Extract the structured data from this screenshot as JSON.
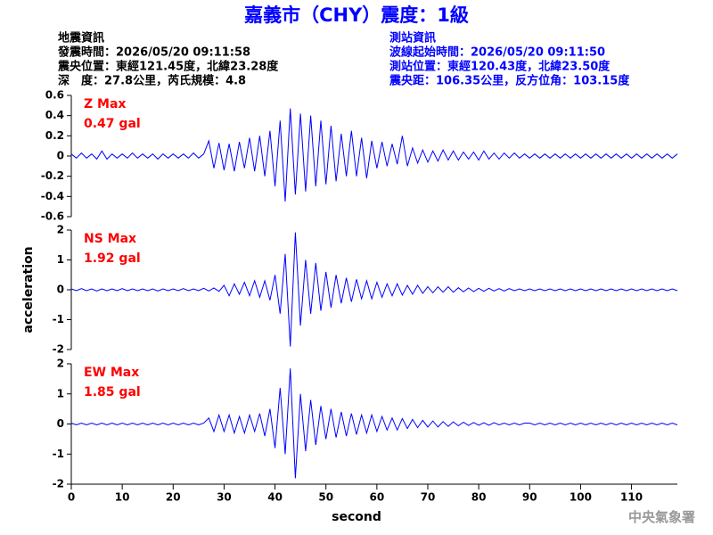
{
  "title": "嘉義市（CHY）震度：1級",
  "info_left": [
    "地震資訊",
    "發震時間：2026/05/20 09:11:58",
    "震央位置：東經121.45度，北緯23.28度",
    "深　度：27.8公里，芮氏規模：4.8"
  ],
  "info_right": [
    "測站資訊",
    "波線起始時間：2026/05/20 09:11:50",
    "測站位置：東經120.43度，北緯23.50度",
    "震央距：106.35公里，反方位角：103.15度"
  ],
  "y_label": "acceleration",
  "footer": "中央氣象署",
  "chart_data": [
    {
      "type": "line",
      "annotation": [
        "Z Max",
        "0.47 gal"
      ],
      "color": "#0000ff",
      "xlim": [
        0,
        119
      ],
      "ylim": [
        -0.6,
        0.6
      ],
      "yticks": [
        0.6,
        0.4,
        0.2,
        0,
        -0.2,
        -0.4,
        -0.6
      ],
      "x": [
        0,
        1,
        2,
        3,
        4,
        5,
        6,
        7,
        8,
        9,
        10,
        11,
        12,
        13,
        14,
        15,
        16,
        17,
        18,
        19,
        20,
        21,
        22,
        23,
        24,
        25,
        26,
        27,
        28,
        29,
        30,
        31,
        32,
        33,
        34,
        35,
        36,
        37,
        38,
        39,
        40,
        41,
        42,
        43,
        44,
        45,
        46,
        47,
        48,
        49,
        50,
        51,
        52,
        53,
        54,
        55,
        56,
        57,
        58,
        59,
        60,
        61,
        62,
        63,
        64,
        65,
        66,
        67,
        68,
        69,
        70,
        71,
        72,
        73,
        74,
        75,
        76,
        77,
        78,
        79,
        80,
        81,
        82,
        83,
        84,
        85,
        86,
        87,
        88,
        89,
        90,
        91,
        92,
        93,
        94,
        95,
        96,
        97,
        98,
        99,
        100,
        101,
        102,
        103,
        104,
        105,
        106,
        107,
        108,
        109,
        110,
        111,
        112,
        113,
        114,
        115,
        116,
        117,
        118,
        119
      ],
      "values": [
        0.02,
        -0.02,
        0.03,
        -0.02,
        0.02,
        -0.03,
        0.05,
        -0.03,
        0.02,
        -0.02,
        0.02,
        -0.02,
        0.03,
        -0.02,
        0.02,
        -0.02,
        0.02,
        -0.03,
        0.02,
        -0.02,
        0.02,
        -0.02,
        0.02,
        -0.02,
        0.03,
        -0.02,
        0.02,
        0.15,
        -0.12,
        0.13,
        -0.14,
        0.12,
        -0.15,
        0.14,
        -0.12,
        0.18,
        -0.15,
        0.2,
        -0.2,
        0.25,
        -0.3,
        0.35,
        -0.45,
        0.47,
        -0.38,
        0.42,
        -0.35,
        0.4,
        -0.3,
        0.35,
        -0.28,
        0.3,
        -0.25,
        0.22,
        -0.2,
        0.25,
        -0.2,
        0.18,
        -0.22,
        0.15,
        -0.12,
        0.14,
        -0.1,
        0.12,
        -0.08,
        0.2,
        -0.1,
        0.08,
        -0.07,
        0.06,
        -0.06,
        0.05,
        -0.05,
        0.06,
        -0.04,
        0.05,
        -0.04,
        0.04,
        -0.03,
        0.04,
        -0.04,
        0.05,
        -0.03,
        0.03,
        -0.03,
        0.03,
        -0.02,
        0.03,
        -0.02,
        0.02,
        -0.02,
        0.02,
        -0.02,
        0.02,
        -0.02,
        0.02,
        -0.02,
        0.02,
        -0.02,
        0.02,
        -0.02,
        0.02,
        -0.02,
        0.02,
        -0.02,
        0.02,
        -0.02,
        0.02,
        -0.02,
        0.02,
        -0.02,
        0.02,
        -0.02,
        0.02,
        -0.02,
        0.02,
        -0.02,
        0.02,
        -0.02,
        0.02
      ]
    },
    {
      "type": "line",
      "annotation": [
        "NS Max",
        "1.92 gal"
      ],
      "color": "#0000ff",
      "xlim": [
        0,
        119
      ],
      "ylim": [
        -2,
        2
      ],
      "yticks": [
        2,
        1,
        0,
        -1,
        -2
      ],
      "x": [
        0,
        1,
        2,
        3,
        4,
        5,
        6,
        7,
        8,
        9,
        10,
        11,
        12,
        13,
        14,
        15,
        16,
        17,
        18,
        19,
        20,
        21,
        22,
        23,
        24,
        25,
        26,
        27,
        28,
        29,
        30,
        31,
        32,
        33,
        34,
        35,
        36,
        37,
        38,
        39,
        40,
        41,
        42,
        43,
        44,
        45,
        46,
        47,
        48,
        49,
        50,
        51,
        52,
        53,
        54,
        55,
        56,
        57,
        58,
        59,
        60,
        61,
        62,
        63,
        64,
        65,
        66,
        67,
        68,
        69,
        70,
        71,
        72,
        73,
        74,
        75,
        76,
        77,
        78,
        79,
        80,
        81,
        82,
        83,
        84,
        85,
        86,
        87,
        88,
        89,
        90,
        91,
        92,
        93,
        94,
        95,
        96,
        97,
        98,
        99,
        100,
        101,
        102,
        103,
        104,
        105,
        106,
        107,
        108,
        109,
        110,
        111,
        112,
        113,
        114,
        115,
        116,
        117,
        118,
        119
      ],
      "values": [
        0.03,
        -0.03,
        0.04,
        -0.03,
        0.03,
        -0.04,
        0.03,
        -0.03,
        0.03,
        -0.03,
        0.04,
        -0.03,
        0.03,
        -0.03,
        0.03,
        -0.03,
        0.03,
        -0.04,
        0.03,
        -0.03,
        0.03,
        -0.03,
        0.04,
        -0.03,
        0.03,
        -0.03,
        0.05,
        -0.04,
        0.06,
        -0.05,
        0.15,
        -0.2,
        0.2,
        -0.15,
        0.25,
        -0.2,
        0.3,
        -0.25,
        0.3,
        -0.35,
        0.5,
        -0.8,
        1.2,
        -1.9,
        1.92,
        -1.2,
        1.0,
        -0.8,
        0.9,
        -0.7,
        0.6,
        -0.6,
        0.5,
        -0.45,
        0.4,
        -0.4,
        0.35,
        -0.3,
        0.3,
        -0.3,
        0.25,
        -0.25,
        0.2,
        -0.2,
        0.2,
        -0.18,
        0.15,
        -0.15,
        0.15,
        -0.12,
        0.1,
        -0.1,
        0.1,
        -0.08,
        0.1,
        -0.08,
        0.07,
        -0.07,
        0.06,
        -0.06,
        0.05,
        -0.05,
        0.05,
        -0.04,
        0.04,
        -0.04,
        0.04,
        -0.03,
        0.03,
        -0.03,
        0.03,
        -0.03,
        0.03,
        -0.03,
        0.03,
        -0.03,
        0.03,
        -0.03,
        0.03,
        -0.03,
        0.03,
        -0.03,
        0.03,
        -0.03,
        0.03,
        -0.03,
        0.03,
        -0.03,
        0.03,
        -0.03,
        0.03,
        -0.03,
        0.03,
        -0.03,
        0.03,
        -0.03,
        0.03,
        -0.03,
        0.03,
        -0.03
      ]
    },
    {
      "type": "line",
      "annotation": [
        "EW Max",
        "1.85 gal"
      ],
      "color": "#0000ff",
      "xlim": [
        0,
        119
      ],
      "ylim": [
        -2,
        2
      ],
      "yticks": [
        2,
        1,
        0,
        -1,
        -2
      ],
      "xticks": [
        0,
        10,
        20,
        30,
        40,
        50,
        60,
        70,
        80,
        90,
        100,
        110
      ],
      "x_label": "second",
      "x": [
        0,
        1,
        2,
        3,
        4,
        5,
        6,
        7,
        8,
        9,
        10,
        11,
        12,
        13,
        14,
        15,
        16,
        17,
        18,
        19,
        20,
        21,
        22,
        23,
        24,
        25,
        26,
        27,
        28,
        29,
        30,
        31,
        32,
        33,
        34,
        35,
        36,
        37,
        38,
        39,
        40,
        41,
        42,
        43,
        44,
        45,
        46,
        47,
        48,
        49,
        50,
        51,
        52,
        53,
        54,
        55,
        56,
        57,
        58,
        59,
        60,
        61,
        62,
        63,
        64,
        65,
        66,
        67,
        68,
        69,
        70,
        71,
        72,
        73,
        74,
        75,
        76,
        77,
        78,
        79,
        80,
        81,
        82,
        83,
        84,
        85,
        86,
        87,
        88,
        89,
        90,
        91,
        92,
        93,
        94,
        95,
        96,
        97,
        98,
        99,
        100,
        101,
        102,
        103,
        104,
        105,
        106,
        107,
        108,
        109,
        110,
        111,
        112,
        113,
        114,
        115,
        116,
        117,
        118,
        119
      ],
      "values": [
        0.03,
        -0.03,
        0.03,
        -0.03,
        0.03,
        -0.03,
        0.03,
        -0.03,
        0.03,
        -0.03,
        0.03,
        -0.03,
        0.03,
        -0.03,
        0.03,
        -0.03,
        0.03,
        -0.03,
        0.03,
        -0.03,
        0.03,
        -0.03,
        0.03,
        -0.03,
        0.03,
        -0.03,
        0.03,
        0.2,
        -0.25,
        0.3,
        -0.25,
        0.3,
        -0.3,
        0.25,
        -0.3,
        0.3,
        -0.25,
        0.35,
        -0.4,
        0.5,
        -0.8,
        1.2,
        -1.0,
        1.85,
        -1.8,
        1.0,
        -0.9,
        0.8,
        -0.7,
        0.6,
        -0.5,
        0.5,
        -0.45,
        0.4,
        -0.4,
        0.35,
        -0.35,
        0.3,
        -0.3,
        0.3,
        -0.25,
        0.25,
        -0.2,
        0.2,
        -0.2,
        0.18,
        -0.15,
        0.15,
        -0.12,
        0.12,
        -0.1,
        0.1,
        -0.1,
        0.08,
        -0.08,
        0.07,
        -0.06,
        0.06,
        -0.05,
        0.05,
        -0.04,
        0.04,
        -0.04,
        0.04,
        -0.03,
        0.03,
        -0.03,
        0.03,
        -0.03,
        0.03,
        0.03,
        -0.03,
        0.03,
        -0.03,
        0.03,
        -0.03,
        0.03,
        -0.03,
        0.03,
        -0.03,
        0.03,
        -0.03,
        0.03,
        -0.03,
        0.03,
        -0.03,
        0.03,
        -0.03,
        0.03,
        -0.03,
        0.03,
        -0.03,
        0.03,
        -0.03,
        0.03,
        -0.03,
        0.03,
        -0.03,
        0.03,
        -0.03
      ]
    }
  ]
}
